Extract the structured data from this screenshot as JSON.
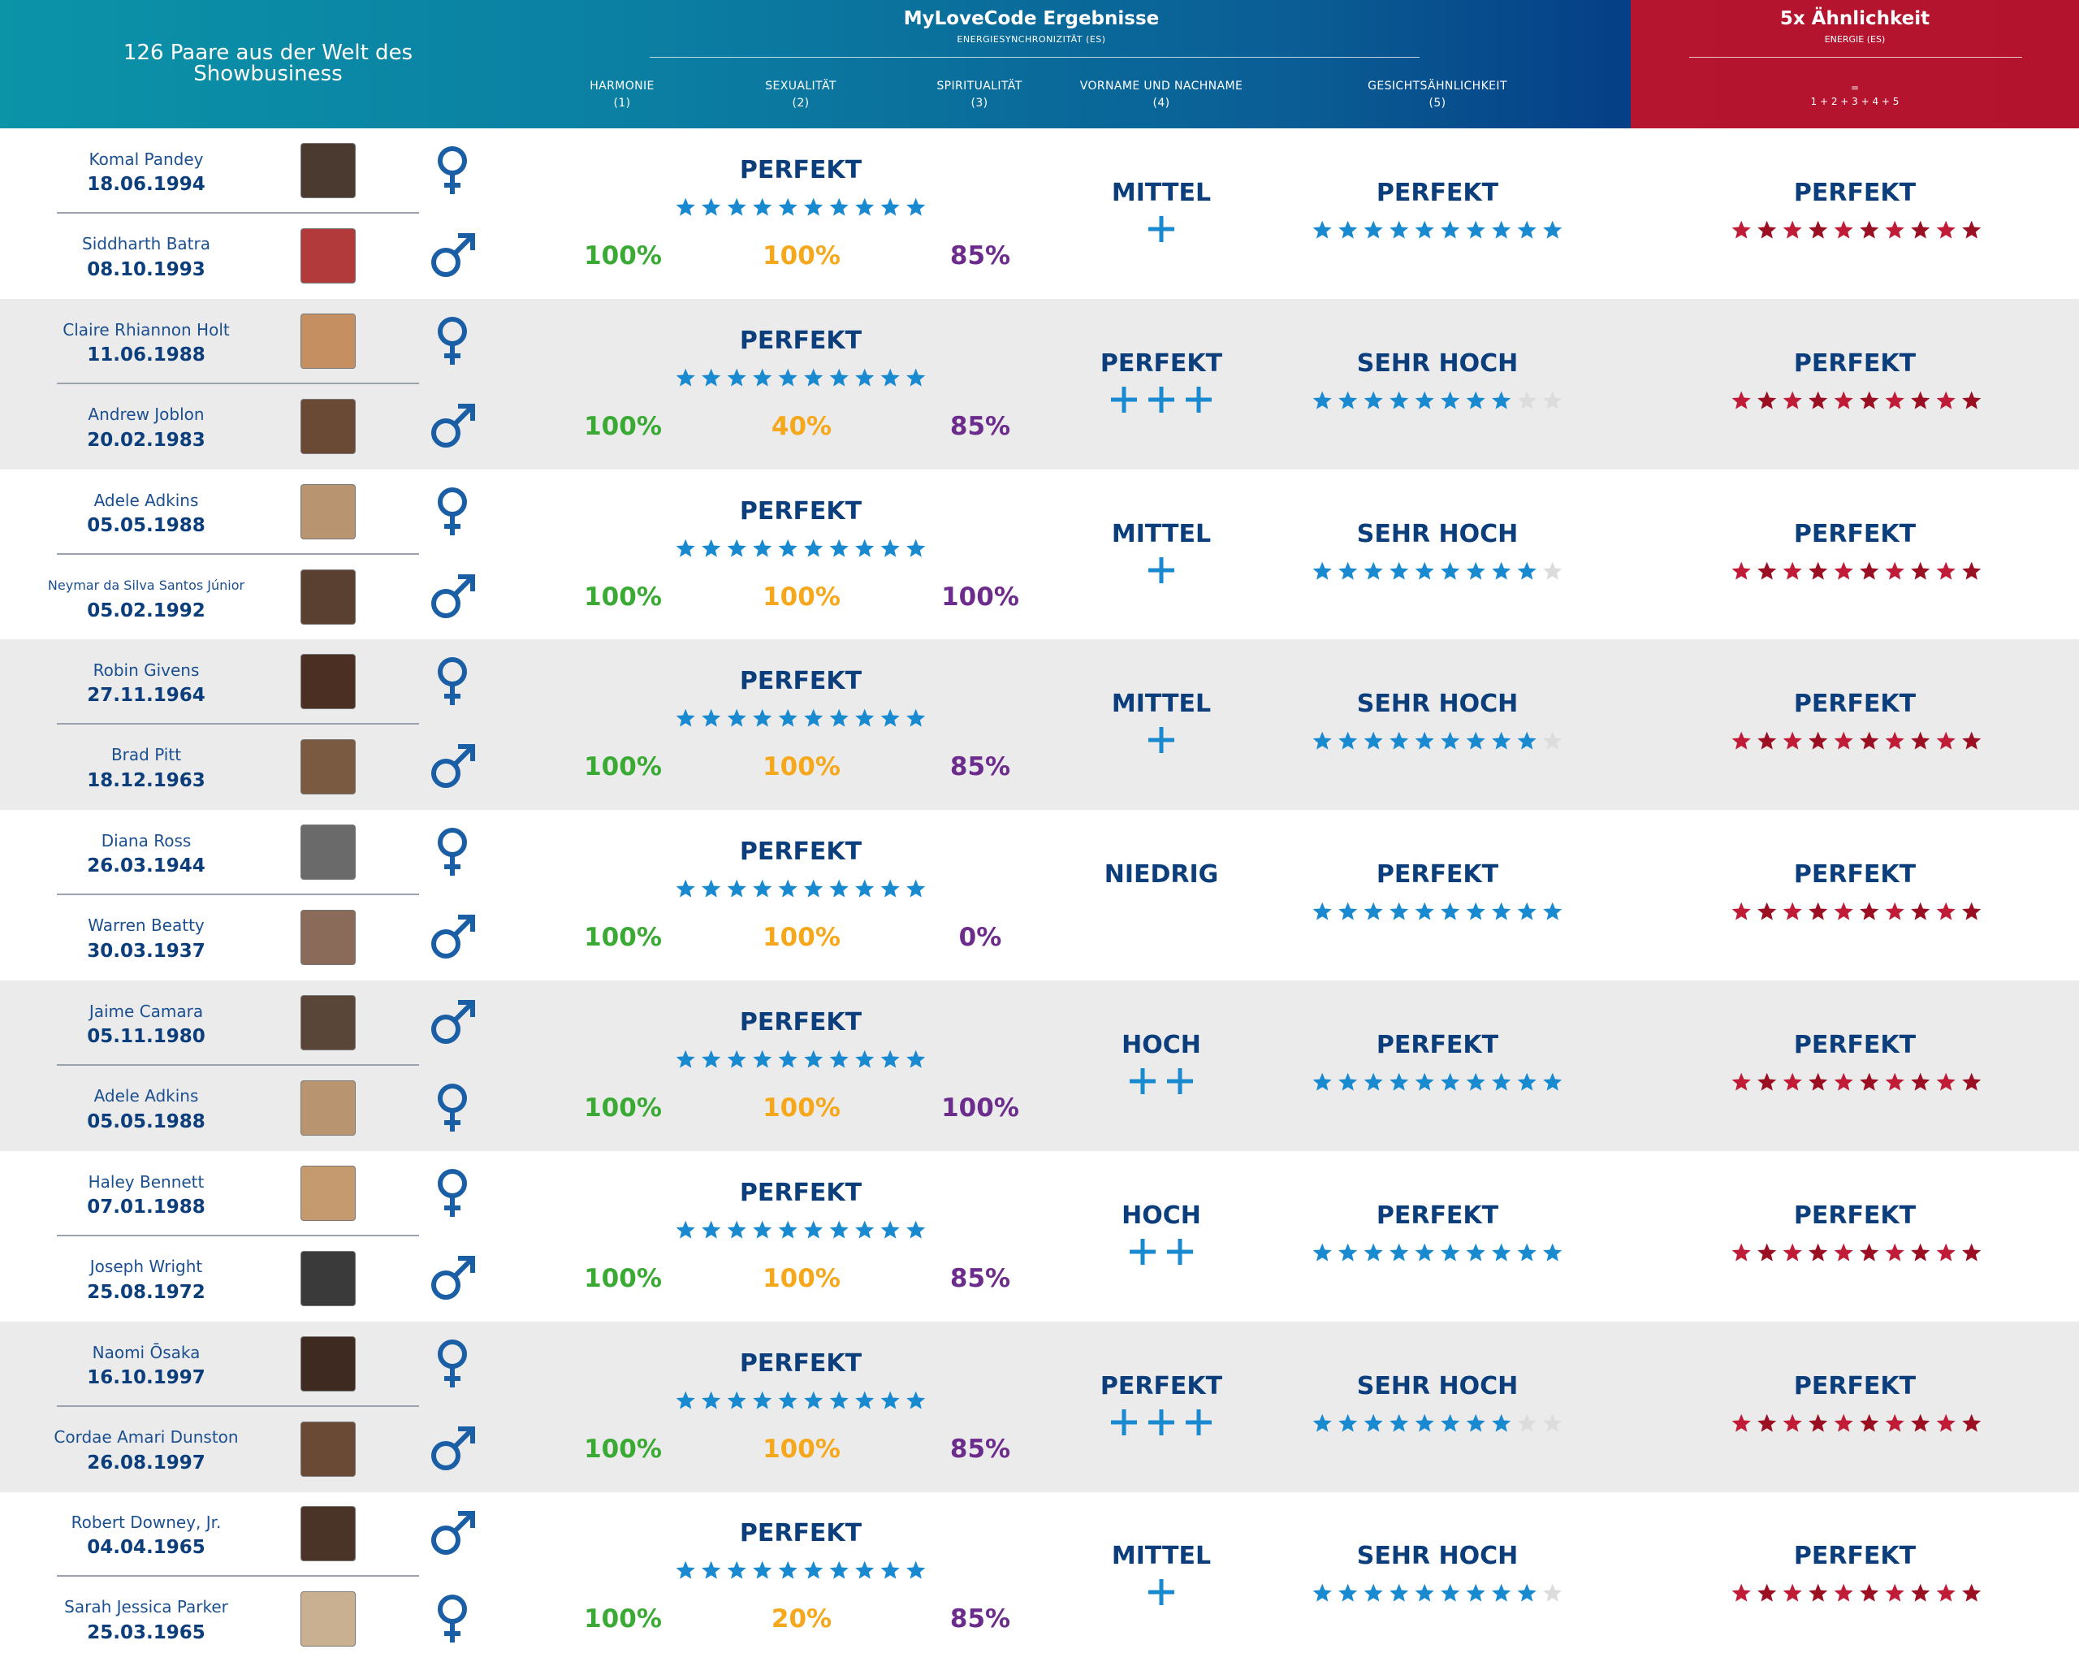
{
  "header": {
    "left_title": "126 Paare aus der Welt des Showbusiness",
    "main_title": "MyLoveCode Ergebnisse",
    "main_subtitle": "ENERGIESYNCHRONIZITÄT (ES)",
    "red_title": "5x Ähnlichkeit",
    "red_subtitle": "ENERGIE (ES)",
    "formula_eq": "=",
    "formula": "1 + 2 + 3 + 4 + 5",
    "columns": [
      {
        "label": "HARMONIE",
        "num": "(1)"
      },
      {
        "label": "SEXUALITÄT",
        "num": "(2)"
      },
      {
        "label": "SPIRITUALITÄT",
        "num": "(3)"
      },
      {
        "label": "VORNAME UND NACHNAME",
        "num": "(4)"
      },
      {
        "label": "GESICHTSÄHNLICHKEIT",
        "num": "(5)"
      }
    ]
  },
  "colors": {
    "blue_star": "#1a8ad0",
    "red_star_a": "#c01c38",
    "red_star_b": "#9a0f22",
    "grey_star": "#dcdcdc",
    "gender_blue": "#1a5ea6"
  },
  "couples": [
    {
      "p1": {
        "name": "Komal Pandey",
        "date": "18.06.1994",
        "gender": "female",
        "photo_tone": "#4a3a30"
      },
      "p2": {
        "name": "Siddharth Batra",
        "date": "08.10.1993",
        "gender": "male",
        "photo_tone": "#b23a3a"
      },
      "es_label": "PERFEKT",
      "es_stars": 10,
      "harmonie": "100%",
      "sexualitaet": "100%",
      "spiritualitaet": "85%",
      "name_label": "MITTEL",
      "name_plus": 1,
      "face_label": "PERFEKT",
      "face_stars": 10,
      "total_label": "PERFEKT",
      "total_stars": 10
    },
    {
      "p1": {
        "name": "Claire Rhiannon Holt",
        "date": "11.06.1988",
        "gender": "female",
        "photo_tone": "#c58f62"
      },
      "p2": {
        "name": "Andrew Joblon",
        "date": "20.02.1983",
        "gender": "male",
        "photo_tone": "#6b4a35"
      },
      "es_label": "PERFEKT",
      "es_stars": 10,
      "harmonie": "100%",
      "sexualitaet": "40%",
      "spiritualitaet": "85%",
      "name_label": "PERFEKT",
      "name_plus": 3,
      "face_label": "SEHR HOCH",
      "face_stars": 8,
      "total_label": "PERFEKT",
      "total_stars": 10
    },
    {
      "p1": {
        "name": "Adele Adkins",
        "date": "05.05.1988",
        "gender": "female",
        "photo_tone": "#b89470"
      },
      "p2": {
        "name": "Neymar da Silva Santos Júnior",
        "date": "05.02.1992",
        "gender": "male",
        "photo_tone": "#5a4030"
      },
      "es_label": "PERFEKT",
      "es_stars": 10,
      "harmonie": "100%",
      "sexualitaet": "100%",
      "spiritualitaet": "100%",
      "name_label": "MITTEL",
      "name_plus": 1,
      "face_label": "SEHR HOCH",
      "face_stars": 9,
      "total_label": "PERFEKT",
      "total_stars": 10
    },
    {
      "p1": {
        "name": "Robin Givens",
        "date": "27.11.1964",
        "gender": "female",
        "photo_tone": "#4a2f22"
      },
      "p2": {
        "name": "Brad Pitt",
        "date": "18.12.1963",
        "gender": "male",
        "photo_tone": "#7a5a40"
      },
      "es_label": "PERFEKT",
      "es_stars": 10,
      "harmonie": "100%",
      "sexualitaet": "100%",
      "spiritualitaet": "85%",
      "name_label": "MITTEL",
      "name_plus": 1,
      "face_label": "SEHR HOCH",
      "face_stars": 9,
      "total_label": "PERFEKT",
      "total_stars": 10
    },
    {
      "p1": {
        "name": "Diana Ross",
        "date": "26.03.1944",
        "gender": "female",
        "photo_tone": "#6a6a6a"
      },
      "p2": {
        "name": "Warren Beatty",
        "date": "30.03.1937",
        "gender": "male",
        "photo_tone": "#8a6a58"
      },
      "es_label": "PERFEKT",
      "es_stars": 10,
      "harmonie": "100%",
      "sexualitaet": "100%",
      "spiritualitaet": "0%",
      "name_label": "NIEDRIG",
      "name_plus": 0,
      "face_label": "PERFEKT",
      "face_stars": 10,
      "total_label": "PERFEKT",
      "total_stars": 10
    },
    {
      "p1": {
        "name": "Jaime Camara",
        "date": "05.11.1980",
        "gender": "male",
        "photo_tone": "#5a4638"
      },
      "p2": {
        "name": "Adele Adkins",
        "date": "05.05.1988",
        "gender": "female",
        "photo_tone": "#b89470"
      },
      "es_label": "PERFEKT",
      "es_stars": 10,
      "harmonie": "100%",
      "sexualitaet": "100%",
      "spiritualitaet": "100%",
      "name_label": "HOCH",
      "name_plus": 2,
      "face_label": "PERFEKT",
      "face_stars": 10,
      "total_label": "PERFEKT",
      "total_stars": 10
    },
    {
      "p1": {
        "name": "Haley Bennett",
        "date": "07.01.1988",
        "gender": "female",
        "photo_tone": "#c49a6e"
      },
      "p2": {
        "name": "Joseph Wright",
        "date": "25.08.1972",
        "gender": "male",
        "photo_tone": "#3a3a3a"
      },
      "es_label": "PERFEKT",
      "es_stars": 10,
      "harmonie": "100%",
      "sexualitaet": "100%",
      "spiritualitaet": "85%",
      "name_label": "HOCH",
      "name_plus": 2,
      "face_label": "PERFEKT",
      "face_stars": 10,
      "total_label": "PERFEKT",
      "total_stars": 10
    },
    {
      "p1": {
        "name": "Naomi Ōsaka",
        "date": "16.10.1997",
        "gender": "female",
        "photo_tone": "#3e2a20"
      },
      "p2": {
        "name": "Cordae Amari Dunston",
        "date": "26.08.1997",
        "gender": "male",
        "photo_tone": "#6a4a34"
      },
      "es_label": "PERFEKT",
      "es_stars": 10,
      "harmonie": "100%",
      "sexualitaet": "100%",
      "spiritualitaet": "85%",
      "name_label": "PERFEKT",
      "name_plus": 3,
      "face_label": "SEHR HOCH",
      "face_stars": 8,
      "total_label": "PERFEKT",
      "total_stars": 10
    },
    {
      "p1": {
        "name": "Robert Downey, Jr.",
        "date": "04.04.1965",
        "gender": "male",
        "photo_tone": "#4a3428"
      },
      "p2": {
        "name": "Sarah Jessica Parker",
        "date": "25.03.1965",
        "gender": "female",
        "photo_tone": "#c8b090"
      },
      "es_label": "PERFEKT",
      "es_stars": 10,
      "harmonie": "100%",
      "sexualitaet": "20%",
      "spiritualitaet": "85%",
      "name_label": "MITTEL",
      "name_plus": 1,
      "face_label": "SEHR HOCH",
      "face_stars": 9,
      "total_label": "PERFEKT",
      "total_stars": 10
    }
  ]
}
